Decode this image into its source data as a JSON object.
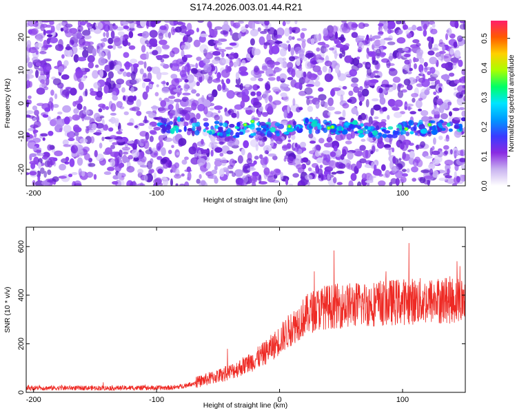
{
  "title": "S174.2026.003.01.44.R21",
  "colors": {
    "trace": "#ee2a24",
    "spectrogram_low": "#ffffff",
    "spectrogram_mid": "#8a2be2",
    "spectrogram_high": "#00ffff"
  },
  "chart_data": [
    {
      "type": "heatmap",
      "name_hint": "spectrogram",
      "xlabel": "Height of straight line (km)",
      "ylabel": "Frequency (Hz)",
      "xlim": [
        -206,
        151
      ],
      "ylim": [
        -25,
        25
      ],
      "xticks": [
        -200,
        -100,
        0,
        100
      ],
      "yticks": [
        -20,
        -10,
        0,
        10,
        20
      ],
      "colorbar": {
        "label": "Normalized spectral amplitude",
        "range": [
          0,
          0.56
        ],
        "ticks": [
          0,
          0.1,
          0.2,
          0.3,
          0.4,
          0.5
        ]
      },
      "signal_band": {
        "frequency_center": -7.5,
        "x_start": -100,
        "x_end": 150
      },
      "grid": false
    },
    {
      "type": "line",
      "name_hint": "snr",
      "xlabel": "Height of straight line (km)",
      "ylabel": "SNR (10 * v/v)",
      "xlim": [
        -206,
        151
      ],
      "ylim": [
        0,
        680
      ],
      "xticks": [
        -200,
        -100,
        0,
        100
      ],
      "yticks": [
        0,
        200,
        400,
        600
      ],
      "grid": false,
      "x": [
        -206,
        -180,
        -150,
        -120,
        -100,
        -85,
        -75,
        -65,
        -55,
        -45,
        -35,
        -25,
        -15,
        -5,
        5,
        15,
        25,
        35,
        45,
        60,
        75,
        90,
        105,
        120,
        135,
        151
      ],
      "y": [
        18,
        18,
        18,
        18,
        18,
        20,
        30,
        45,
        60,
        75,
        95,
        120,
        150,
        190,
        240,
        290,
        330,
        350,
        355,
        360,
        365,
        370,
        375,
        375,
        380,
        380
      ]
    }
  ]
}
